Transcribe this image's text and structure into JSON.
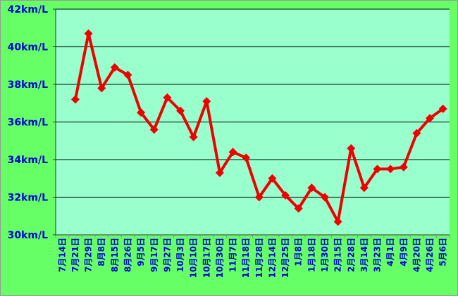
{
  "chart_data": {
    "type": "line",
    "title": "",
    "xlabel": "",
    "ylabel": "",
    "ylim": [
      30,
      42
    ],
    "yticks": [
      30,
      32,
      34,
      36,
      38,
      40,
      42
    ],
    "ytick_labels": [
      "30km/L",
      "32km/L",
      "34km/L",
      "36km/L",
      "38km/L",
      "40km/L",
      "42km/L"
    ],
    "grid": true,
    "legend": "none",
    "categories": [
      "7月14日",
      "7月21日",
      "7月29日",
      "8月8日",
      "8月15日",
      "8月26日",
      "9月5日",
      "9月17日",
      "9月27日",
      "10月3日",
      "10月10日",
      "10月17日",
      "10月30日",
      "11月7日",
      "11月18日",
      "11月28日",
      "12月14日",
      "12月25日",
      "1月8日",
      "1月18日",
      "1月30日",
      "2月15日",
      "2月28日",
      "3月14日",
      "3月23日",
      "4月1日",
      "4月9日",
      "4月20日",
      "4月26日",
      "5月6日"
    ],
    "series": [
      {
        "values": [
          null,
          37.2,
          40.7,
          37.8,
          38.9,
          38.5,
          36.5,
          35.6,
          37.3,
          36.6,
          35.2,
          37.1,
          33.3,
          34.4,
          34.1,
          32.0,
          33.0,
          32.1,
          31.4,
          32.5,
          32.0,
          30.7,
          34.6,
          32.5,
          33.5,
          33.5,
          33.6,
          35.4,
          36.2,
          36.7
        ],
        "color": "#ee0000",
        "marker": "diamond"
      }
    ],
    "colors": {
      "outer_background": "#66ff66",
      "plot_background": "#99ffcc",
      "label_color": "#0000dd",
      "grid_color": "#1a3a2a"
    }
  }
}
